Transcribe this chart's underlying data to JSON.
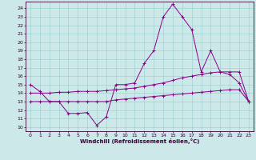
{
  "xlabel": "Windchill (Refroidissement éolien,°C)",
  "x_ticks": [
    0,
    1,
    2,
    3,
    4,
    5,
    6,
    7,
    8,
    9,
    10,
    11,
    12,
    13,
    14,
    15,
    16,
    17,
    18,
    19,
    20,
    21,
    22,
    23
  ],
  "y_ticks": [
    10,
    11,
    12,
    13,
    14,
    15,
    16,
    17,
    18,
    19,
    20,
    21,
    22,
    23,
    24
  ],
  "ylim": [
    9.5,
    24.8
  ],
  "xlim": [
    -0.5,
    23.5
  ],
  "bg_color": "#cce8e8",
  "grid_color": "#99cccc",
  "line_color": "#880088",
  "line1_x": [
    0,
    1,
    2,
    3,
    4,
    5,
    6,
    7,
    8,
    9,
    10,
    11,
    12,
    13,
    14,
    15,
    16,
    17,
    18,
    19,
    20,
    21,
    22,
    23
  ],
  "line1_y": [
    15.0,
    14.2,
    13.0,
    13.0,
    11.6,
    11.6,
    11.7,
    10.2,
    11.2,
    15.0,
    15.0,
    15.2,
    17.5,
    19.0,
    23.0,
    24.5,
    23.0,
    21.5,
    16.5,
    19.0,
    16.5,
    16.2,
    15.2,
    13.0
  ],
  "line2_x": [
    0,
    1,
    2,
    3,
    4,
    5,
    6,
    7,
    8,
    9,
    10,
    11,
    12,
    13,
    14,
    15,
    16,
    17,
    18,
    19,
    20,
    21,
    22,
    23
  ],
  "line2_y": [
    14.0,
    14.0,
    14.0,
    14.1,
    14.1,
    14.2,
    14.2,
    14.2,
    14.3,
    14.4,
    14.5,
    14.6,
    14.8,
    15.0,
    15.2,
    15.5,
    15.8,
    16.0,
    16.2,
    16.4,
    16.5,
    16.5,
    16.5,
    13.0
  ],
  "line3_x": [
    0,
    1,
    2,
    3,
    4,
    5,
    6,
    7,
    8,
    9,
    10,
    11,
    12,
    13,
    14,
    15,
    16,
    17,
    18,
    19,
    20,
    21,
    22,
    23
  ],
  "line3_y": [
    13.0,
    13.0,
    13.0,
    13.0,
    13.0,
    13.0,
    13.0,
    13.0,
    13.0,
    13.2,
    13.3,
    13.4,
    13.5,
    13.6,
    13.7,
    13.8,
    13.9,
    14.0,
    14.1,
    14.2,
    14.3,
    14.4,
    14.4,
    13.0
  ]
}
